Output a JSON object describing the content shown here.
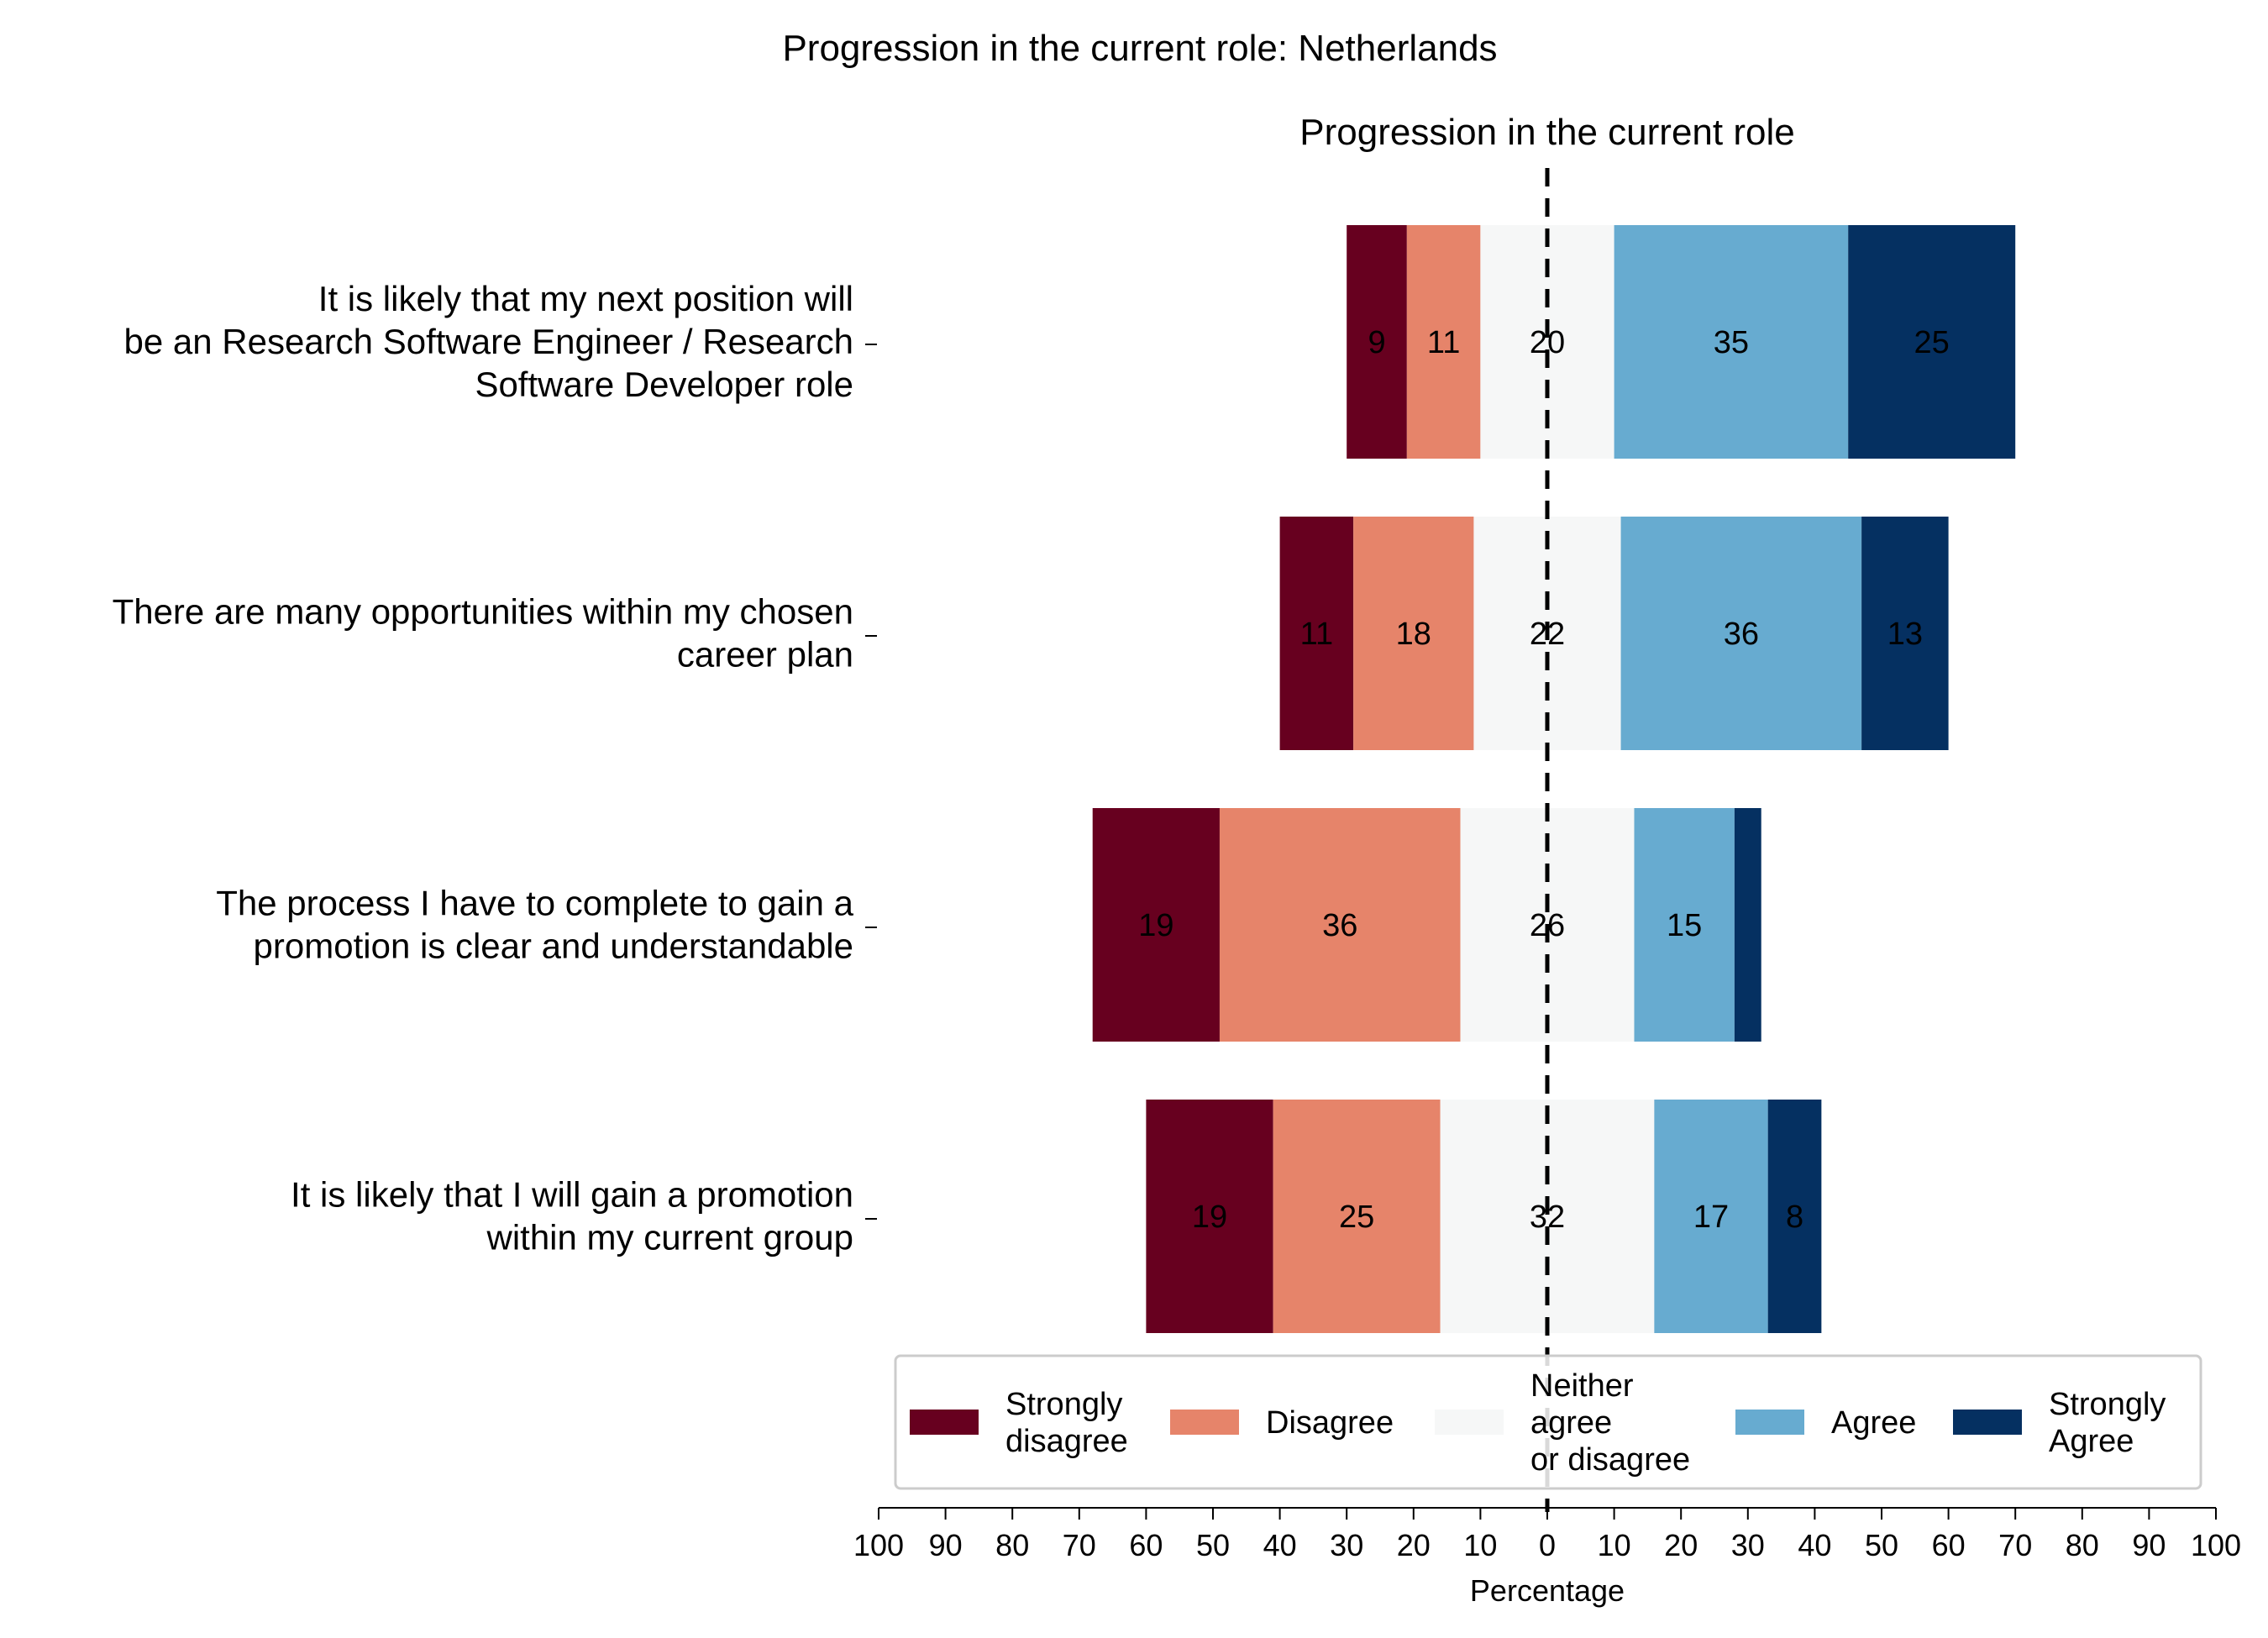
{
  "chart_data": {
    "type": "bar",
    "orientation": "horizontal-diverging",
    "title": "Progression in the current role: Netherlands",
    "subtitle": "Progression in the current role",
    "xlabel": "Percentage",
    "ylabel": "",
    "xlim": [
      -100,
      100
    ],
    "x_ticks": [
      "100",
      "90",
      "80",
      "70",
      "60",
      "50",
      "40",
      "30",
      "20",
      "10",
      "0",
      "10",
      "20",
      "30",
      "40",
      "50",
      "60",
      "70",
      "80",
      "90",
      "100"
    ],
    "grid": false,
    "legend_placement": "bottom-center",
    "categories": [
      [
        "It is likely that my next position will",
        "be an Research Software Engineer / Research",
        "Software Developer role"
      ],
      [
        "There are many opportunities within my chosen",
        "career plan"
      ],
      [
        "The process I have to complete to gain a",
        "promotion is clear and understandable"
      ],
      [
        "It is likely that I will gain a promotion",
        "within my current group"
      ]
    ],
    "series": [
      {
        "name": "Strongly disagree",
        "legend_lines": [
          "Strongly",
          "disagree"
        ],
        "color": "#67001f",
        "values": [
          9,
          11,
          19,
          19
        ],
        "labels": [
          "9",
          "11",
          "19",
          "19"
        ]
      },
      {
        "name": "Disagree",
        "legend_lines": [
          "Disagree"
        ],
        "color": "#e6846a",
        "values": [
          11,
          18,
          36,
          25
        ],
        "labels": [
          "11",
          "18",
          "36",
          "25"
        ]
      },
      {
        "name": "Neither agree or disagree",
        "legend_lines": [
          "Neither",
          "agree",
          "or disagree"
        ],
        "color": "#f6f7f7",
        "values": [
          20,
          22,
          26,
          32
        ],
        "labels": [
          "20",
          "22",
          "26",
          "32"
        ]
      },
      {
        "name": "Agree",
        "legend_lines": [
          "Agree"
        ],
        "color": "#67abd0",
        "values": [
          35,
          36,
          15,
          17
        ],
        "labels": [
          "35",
          "36",
          "15",
          "17"
        ]
      },
      {
        "name": "Strongly Agree",
        "legend_lines": [
          "Strongly",
          "Agree"
        ],
        "color": "#053061",
        "values": [
          25,
          13,
          4,
          8
        ],
        "labels": [
          "25",
          "13",
          "",
          "8"
        ]
      }
    ]
  }
}
